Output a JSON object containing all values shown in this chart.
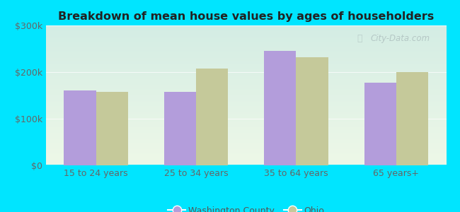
{
  "title": "Breakdown of mean house values by ages of householders",
  "categories": [
    "15 to 24 years",
    "25 to 34 years",
    "35 to 64 years",
    "65 years+"
  ],
  "washington_county": [
    160000,
    157000,
    245000,
    178000
  ],
  "ohio": [
    157000,
    208000,
    232000,
    200000
  ],
  "washington_color": "#b39ddb",
  "ohio_color": "#c5c99a",
  "background_color": "#00e5ff",
  "plot_bg_top": "#d4ede4",
  "plot_bg_bottom": "#eef8e8",
  "ylim": [
    0,
    300000
  ],
  "yticks": [
    0,
    100000,
    200000,
    300000
  ],
  "ytick_labels": [
    "$0",
    "$100k",
    "$200k",
    "$300k"
  ],
  "legend_labels": [
    "Washington County",
    "Ohio"
  ],
  "watermark": "City-Data.com",
  "bar_width": 0.32
}
